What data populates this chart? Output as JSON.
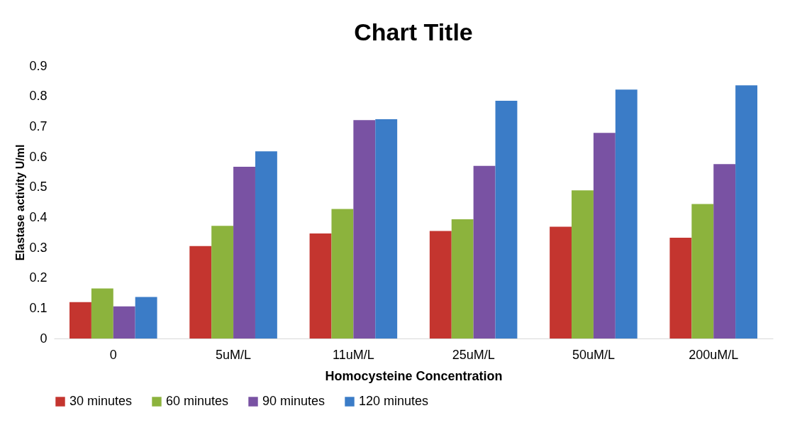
{
  "chart_data": {
    "type": "bar",
    "title": "Chart Title",
    "xlabel": "Homocysteine Concentration",
    "ylabel": "Elastase activity U/ml",
    "categories": [
      "0",
      "5uM/L",
      "11uM/L",
      "25uM/L",
      "50uM/L",
      "200uM/L"
    ],
    "series": [
      {
        "name": "30 minutes",
        "color": "#c4352f",
        "values": [
          0.12,
          0.305,
          0.347,
          0.355,
          0.369,
          0.333
        ]
      },
      {
        "name": "60 minutes",
        "color": "#8cb33d",
        "values": [
          0.165,
          0.372,
          0.428,
          0.394,
          0.489,
          0.444
        ]
      },
      {
        "name": "90 minutes",
        "color": "#7952a3",
        "values": [
          0.106,
          0.567,
          0.721,
          0.57,
          0.679,
          0.576
        ]
      },
      {
        "name": "120 minutes",
        "color": "#3b7cc7",
        "values": [
          0.137,
          0.618,
          0.724,
          0.785,
          0.822,
          0.836
        ]
      }
    ],
    "ylim": [
      0,
      0.9
    ],
    "yticks": [
      0,
      0.1,
      0.2,
      0.3,
      0.4,
      0.5,
      0.6,
      0.7,
      0.8,
      0.9
    ],
    "grid": false,
    "legend": "bottom"
  }
}
